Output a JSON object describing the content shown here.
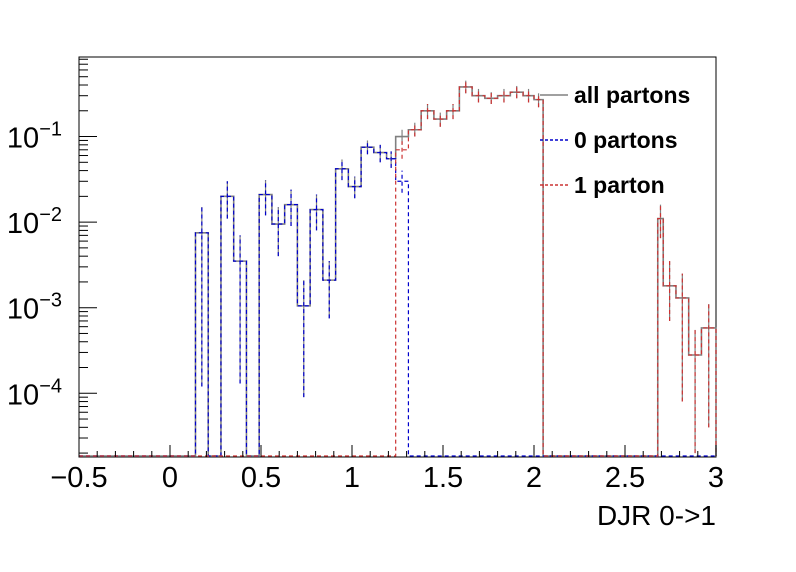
{
  "chart_data": {
    "type": "histogram",
    "title": "",
    "xlabel": "DJR 0->1",
    "ylabel": "",
    "xlim": [
      -0.5,
      3.0
    ],
    "ylim": [
      1.8e-05,
      0.85
    ],
    "yscale": "log",
    "grid": false,
    "legend_position": "top-right",
    "x_ticks": [
      {
        "v": -0.5,
        "label": "−0.5"
      },
      {
        "v": 0,
        "label": "0"
      },
      {
        "v": 0.5,
        "label": "0.5"
      },
      {
        "v": 1,
        "label": "1"
      },
      {
        "v": 1.5,
        "label": "1.5"
      },
      {
        "v": 2,
        "label": "2"
      },
      {
        "v": 2.5,
        "label": "2.5"
      },
      {
        "v": 3,
        "label": "3"
      }
    ],
    "y_ticks": [
      {
        "v": 0.1,
        "base": "10",
        "exp": "−1"
      },
      {
        "v": 0.01,
        "base": "10",
        "exp": "−2"
      },
      {
        "v": 0.001,
        "base": "10",
        "exp": "−3"
      },
      {
        "v": 0.0001,
        "base": "10",
        "exp": "−4"
      }
    ],
    "series": [
      {
        "name": "all partons",
        "color": "#808080",
        "style": "solid",
        "bins": [
          {
            "x0": 0.14,
            "x1": 0.21,
            "y": 0.0075,
            "elo": 0.00012,
            "ehi": 0.015
          },
          {
            "x0": 0.28,
            "x1": 0.35,
            "y": 0.02,
            "elo": 0.011,
            "ehi": 0.03
          },
          {
            "x0": 0.35,
            "x1": 0.42,
            "y": 0.0035,
            "elo": 0.00013,
            "ehi": 0.007
          },
          {
            "x0": 0.49,
            "x1": 0.56,
            "y": 0.021,
            "elo": 0.012,
            "ehi": 0.031
          },
          {
            "x0": 0.56,
            "x1": 0.63,
            "y": 0.0095,
            "elo": 0.004,
            "ehi": 0.015
          },
          {
            "x0": 0.63,
            "x1": 0.7,
            "y": 0.016,
            "elo": 0.009,
            "ehi": 0.024
          },
          {
            "x0": 0.7,
            "x1": 0.77,
            "y": 0.00105,
            "elo": 9e-05,
            "ehi": 0.0021
          },
          {
            "x0": 0.77,
            "x1": 0.84,
            "y": 0.014,
            "elo": 0.008,
            "ehi": 0.021
          },
          {
            "x0": 0.84,
            "x1": 0.91,
            "y": 0.0021,
            "elo": 0.00075,
            "ehi": 0.0035
          },
          {
            "x0": 0.91,
            "x1": 0.98,
            "y": 0.042,
            "elo": 0.031,
            "ehi": 0.054
          },
          {
            "x0": 0.98,
            "x1": 1.05,
            "y": 0.026,
            "elo": 0.019,
            "ehi": 0.034
          },
          {
            "x0": 1.05,
            "x1": 1.12,
            "y": 0.075,
            "elo": 0.062,
            "ehi": 0.09
          },
          {
            "x0": 1.12,
            "x1": 1.19,
            "y": 0.065,
            "elo": 0.05,
            "ehi": 0.08
          },
          {
            "x0": 1.19,
            "x1": 1.24,
            "y": 0.055,
            "elo": 0.043,
            "ehi": 0.067
          },
          {
            "x0": 1.24,
            "x1": 1.31,
            "y": 0.1,
            "elo": 0.08,
            "ehi": 0.12
          },
          {
            "x0": 1.31,
            "x1": 1.38,
            "y": 0.12,
            "elo": 0.1,
            "ehi": 0.145
          },
          {
            "x0": 1.38,
            "x1": 1.45,
            "y": 0.2,
            "elo": 0.16,
            "ehi": 0.24
          },
          {
            "x0": 1.45,
            "x1": 1.52,
            "y": 0.16,
            "elo": 0.13,
            "ehi": 0.19
          },
          {
            "x0": 1.52,
            "x1": 1.59,
            "y": 0.2,
            "elo": 0.16,
            "ehi": 0.24
          },
          {
            "x0": 1.59,
            "x1": 1.66,
            "y": 0.38,
            "elo": 0.32,
            "ehi": 0.45
          },
          {
            "x0": 1.66,
            "x1": 1.73,
            "y": 0.3,
            "elo": 0.25,
            "ehi": 0.36
          },
          {
            "x0": 1.73,
            "x1": 1.8,
            "y": 0.28,
            "elo": 0.24,
            "ehi": 0.33
          },
          {
            "x0": 1.8,
            "x1": 1.87,
            "y": 0.3,
            "elo": 0.25,
            "ehi": 0.36
          },
          {
            "x0": 1.87,
            "x1": 1.94,
            "y": 0.33,
            "elo": 0.28,
            "ehi": 0.39
          },
          {
            "x0": 1.94,
            "x1": 2.0,
            "y": 0.3,
            "elo": 0.25,
            "ehi": 0.36
          },
          {
            "x0": 2.0,
            "x1": 2.05,
            "y": 0.27,
            "elo": 0.22,
            "ehi": 0.32
          },
          {
            "x0": 2.68,
            "x1": 2.71,
            "y": 0.011,
            "elo": 0.0065,
            "ehi": 0.016
          },
          {
            "x0": 2.71,
            "x1": 2.78,
            "y": 0.0018,
            "elo": 0.0007,
            "ehi": 0.0035
          },
          {
            "x0": 2.78,
            "x1": 2.85,
            "y": 0.0013,
            "elo": 8e-05,
            "ehi": 0.0025
          },
          {
            "x0": 2.85,
            "x1": 2.92,
            "y": 0.00028,
            "elo": 2e-05,
            "ehi": 0.00055
          },
          {
            "x0": 2.92,
            "x1": 3.0,
            "y": 0.00058,
            "elo": 4e-05,
            "ehi": 0.0011
          }
        ]
      },
      {
        "name": "0 partons",
        "color": "#0000cc",
        "style": "dashed",
        "bins": [
          {
            "x0": 0.14,
            "x1": 0.21,
            "y": 0.0075,
            "elo": 0.00012,
            "ehi": 0.015
          },
          {
            "x0": 0.28,
            "x1": 0.35,
            "y": 0.02,
            "elo": 0.011,
            "ehi": 0.03
          },
          {
            "x0": 0.35,
            "x1": 0.42,
            "y": 0.0035,
            "elo": 0.00013,
            "ehi": 0.007
          },
          {
            "x0": 0.49,
            "x1": 0.56,
            "y": 0.021,
            "elo": 0.012,
            "ehi": 0.031
          },
          {
            "x0": 0.56,
            "x1": 0.63,
            "y": 0.0095,
            "elo": 0.004,
            "ehi": 0.015
          },
          {
            "x0": 0.63,
            "x1": 0.7,
            "y": 0.016,
            "elo": 0.009,
            "ehi": 0.024
          },
          {
            "x0": 0.7,
            "x1": 0.77,
            "y": 0.00105,
            "elo": 9e-05,
            "ehi": 0.0021
          },
          {
            "x0": 0.77,
            "x1": 0.84,
            "y": 0.014,
            "elo": 0.008,
            "ehi": 0.021
          },
          {
            "x0": 0.84,
            "x1": 0.91,
            "y": 0.0021,
            "elo": 0.00075,
            "ehi": 0.0035
          },
          {
            "x0": 0.91,
            "x1": 0.98,
            "y": 0.042,
            "elo": 0.031,
            "ehi": 0.054
          },
          {
            "x0": 0.98,
            "x1": 1.05,
            "y": 0.026,
            "elo": 0.019,
            "ehi": 0.034
          },
          {
            "x0": 1.05,
            "x1": 1.12,
            "y": 0.075,
            "elo": 0.062,
            "ehi": 0.09
          },
          {
            "x0": 1.12,
            "x1": 1.19,
            "y": 0.065,
            "elo": 0.05,
            "ehi": 0.08
          },
          {
            "x0": 1.19,
            "x1": 1.24,
            "y": 0.055,
            "elo": 0.043,
            "ehi": 0.067
          },
          {
            "x0": 1.24,
            "x1": 1.31,
            "y": 0.03,
            "elo": 0.022,
            "ehi": 0.04
          }
        ]
      },
      {
        "name": "1 parton",
        "color": "#cc3333",
        "style": "dashed",
        "bins": [
          {
            "x0": 1.24,
            "x1": 1.31,
            "y": 0.07,
            "elo": 0.055,
            "ehi": 0.088
          },
          {
            "x0": 1.31,
            "x1": 1.38,
            "y": 0.12,
            "elo": 0.1,
            "ehi": 0.145
          },
          {
            "x0": 1.38,
            "x1": 1.45,
            "y": 0.2,
            "elo": 0.16,
            "ehi": 0.24
          },
          {
            "x0": 1.45,
            "x1": 1.52,
            "y": 0.16,
            "elo": 0.13,
            "ehi": 0.19
          },
          {
            "x0": 1.52,
            "x1": 1.59,
            "y": 0.2,
            "elo": 0.16,
            "ehi": 0.24
          },
          {
            "x0": 1.59,
            "x1": 1.66,
            "y": 0.38,
            "elo": 0.32,
            "ehi": 0.45
          },
          {
            "x0": 1.66,
            "x1": 1.73,
            "y": 0.3,
            "elo": 0.25,
            "ehi": 0.36
          },
          {
            "x0": 1.73,
            "x1": 1.8,
            "y": 0.28,
            "elo": 0.24,
            "ehi": 0.33
          },
          {
            "x0": 1.8,
            "x1": 1.87,
            "y": 0.3,
            "elo": 0.25,
            "ehi": 0.36
          },
          {
            "x0": 1.87,
            "x1": 1.94,
            "y": 0.33,
            "elo": 0.28,
            "ehi": 0.39
          },
          {
            "x0": 1.94,
            "x1": 2.0,
            "y": 0.3,
            "elo": 0.25,
            "ehi": 0.36
          },
          {
            "x0": 2.0,
            "x1": 2.05,
            "y": 0.27,
            "elo": 0.22,
            "ehi": 0.32
          },
          {
            "x0": 2.68,
            "x1": 2.71,
            "y": 0.011,
            "elo": 0.0065,
            "ehi": 0.016
          },
          {
            "x0": 2.71,
            "x1": 2.78,
            "y": 0.0018,
            "elo": 0.0007,
            "ehi": 0.0035
          },
          {
            "x0": 2.78,
            "x1": 2.85,
            "y": 0.0013,
            "elo": 8e-05,
            "ehi": 0.0025
          },
          {
            "x0": 2.85,
            "x1": 2.92,
            "y": 0.00028,
            "elo": 2e-05,
            "ehi": 0.00055
          },
          {
            "x0": 2.92,
            "x1": 3.0,
            "y": 0.00058,
            "elo": 4e-05,
            "ehi": 0.0011
          }
        ]
      }
    ]
  }
}
